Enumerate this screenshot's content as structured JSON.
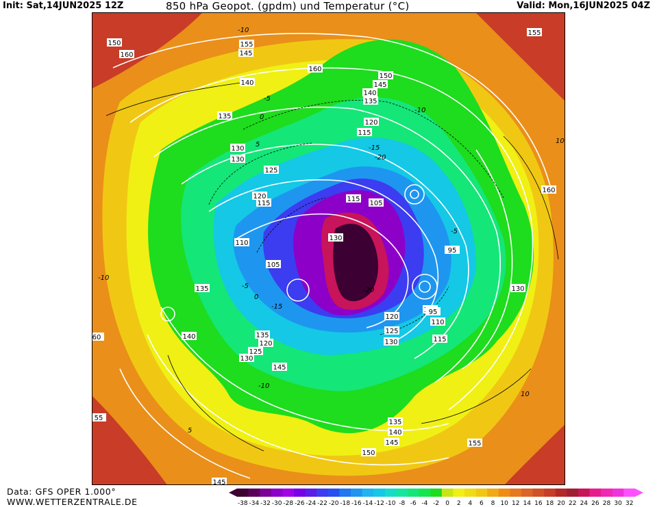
{
  "header": {
    "init": "Init: Sat,14JUN2025 12Z",
    "title": "850 hPa Geopot. (gpdm) und Temperatur (°C)",
    "valid": "Valid: Mon,16JUN2025 04Z"
  },
  "footer": {
    "source": "Data: GFS OPER 1.000°",
    "site": "WWW.WETTERZENTRALE.DE"
  },
  "legend": {
    "ticks": [
      "-38",
      "-34",
      "-32",
      "-30",
      "-28",
      "-26",
      "-24",
      "-22",
      "-20",
      "-18",
      "-16",
      "-14",
      "-12",
      "-10",
      "-8",
      "-6",
      "-4",
      "-2",
      "0",
      "2",
      "4",
      "6",
      "8",
      "10",
      "12",
      "14",
      "16",
      "18",
      "20",
      "22",
      "24",
      "26",
      "28",
      "30",
      "32"
    ],
    "colors": [
      "#3c0032",
      "#5a005a",
      "#7a0096",
      "#8c00c8",
      "#a000e6",
      "#7800e6",
      "#5a1ee6",
      "#3c3cf0",
      "#2850f0",
      "#1e78f0",
      "#1e96f0",
      "#1eb4f0",
      "#14c8e6",
      "#14dcc8",
      "#14e6a0",
      "#14e678",
      "#14e650",
      "#1edc1e",
      "#c8e614",
      "#f0f014",
      "#f0dc14",
      "#f0c814",
      "#f0aa14",
      "#f08c14",
      "#e6781e",
      "#dc6428",
      "#d25028",
      "#c83c28",
      "#b42828",
      "#a01e32",
      "#c8145a",
      "#e61e8c",
      "#f028b4",
      "#f032dc",
      "#ff50ff"
    ]
  },
  "map": {
    "geopotential_labels": [
      "150",
      "145",
      "155",
      "160",
      "155",
      "150",
      "145",
      "140",
      "135",
      "120",
      "115",
      "140",
      "135",
      "130",
      "130",
      "125",
      "120",
      "115",
      "110",
      "105",
      "160",
      "135",
      "140",
      "120",
      "125",
      "130",
      "135",
      "145",
      "115",
      "105",
      "130",
      "120",
      "125",
      "130",
      "100",
      "95",
      "110",
      "115",
      "130",
      "95",
      "155",
      "160",
      "150",
      "145",
      "140",
      "135",
      "55",
      "60",
      "145"
    ],
    "temperature_labels": [
      "-10",
      "-5",
      "0",
      "5",
      "-15",
      "-20",
      "-10",
      "-5",
      "10",
      "-10",
      "-5",
      "0",
      "-15",
      "-20",
      "10",
      "-10",
      "5"
    ]
  }
}
